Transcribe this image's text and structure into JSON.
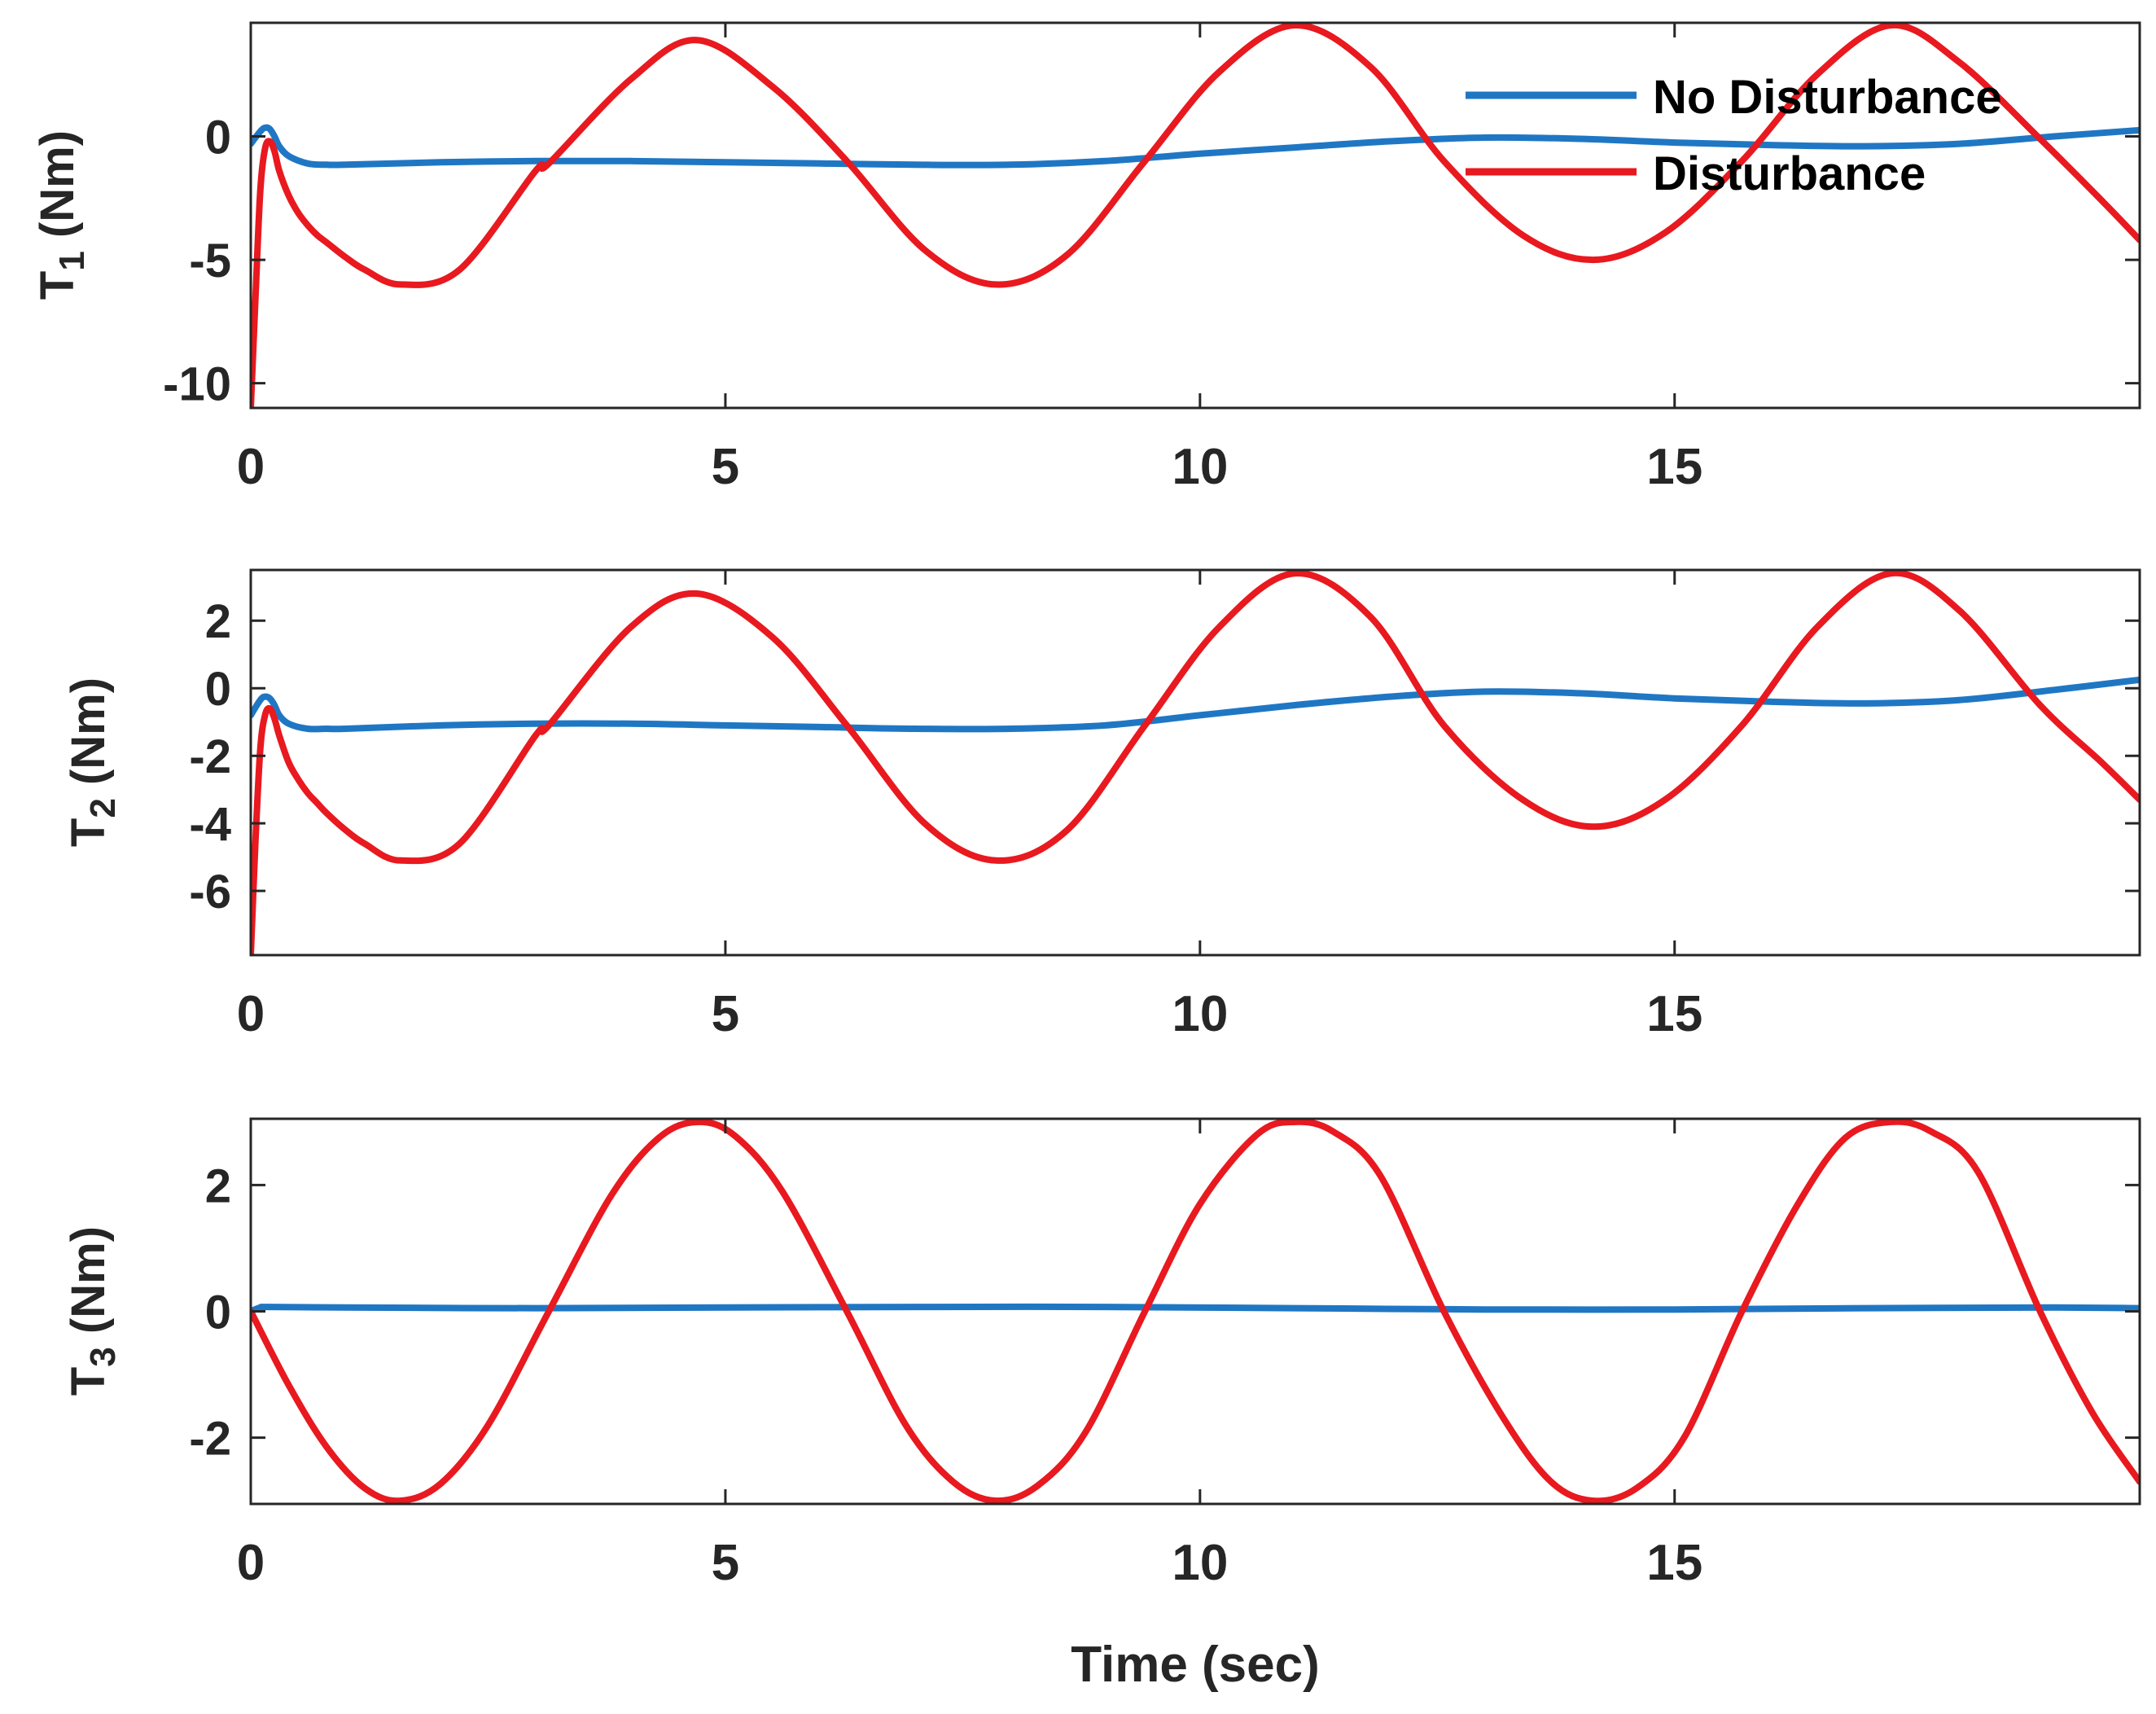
{
  "chart_data": [
    {
      "type": "line",
      "ylabel_main": "T",
      "ylabel_sub": "1",
      "ylabel_unit": " (Nm)",
      "xlim": [
        0,
        19.9
      ],
      "ylim": [
        -11,
        4.6
      ],
      "xticks": [
        0,
        5,
        10,
        15
      ],
      "yticks": [
        -10,
        -5,
        0
      ],
      "xlabel": "",
      "legend": {
        "position": "top-right",
        "entries": [
          "No Disturbance",
          "Disturbance"
        ]
      },
      "series": [
        {
          "name": "No Disturbance",
          "color": "#1f77c4",
          "x": [
            0,
            0.1,
            0.15,
            0.2,
            0.25,
            0.3,
            0.4,
            0.6,
            0.8,
            1,
            2,
            3,
            4,
            5,
            6,
            7,
            8,
            9,
            10,
            11,
            12,
            13,
            14,
            15,
            16,
            17,
            18,
            19,
            19.9
          ],
          "y": [
            -0.3,
            0.2,
            0.35,
            0.3,
            0.0,
            -0.4,
            -0.8,
            -1.1,
            -1.15,
            -1.15,
            -1.05,
            -1.0,
            -1.0,
            -1.05,
            -1.1,
            -1.15,
            -1.15,
            -1.0,
            -0.7,
            -0.45,
            -0.2,
            -0.05,
            -0.1,
            -0.25,
            -0.35,
            -0.4,
            -0.3,
            0.0,
            0.25
          ]
        },
        {
          "name": "Disturbance",
          "color": "#e8191f",
          "x": [
            0,
            0.05,
            0.1,
            0.15,
            0.2,
            0.25,
            0.3,
            0.4,
            0.5,
            0.6,
            0.7,
            0.8,
            1.0,
            1.2,
            1.58,
            2.2,
            3.0,
            3.14,
            4.0,
            4.7,
            5.5,
            6.28,
            7.1,
            7.85,
            8.6,
            9.42,
            10.2,
            11.0,
            11.8,
            12.57,
            13.4,
            14.15,
            14.9,
            15.71,
            16.5,
            17.28,
            18.0,
            18.85,
            19.5,
            19.9
          ],
          "y": [
            -11,
            -6.5,
            -2.2,
            -0.5,
            -0.2,
            -0.6,
            -1.4,
            -2.4,
            -3.1,
            -3.6,
            -4.0,
            -4.3,
            -4.9,
            -5.4,
            -6.0,
            -5.4,
            -1.4,
            -1.1,
            2.3,
            3.9,
            2.0,
            -1.0,
            -4.6,
            -6.0,
            -4.8,
            -1.0,
            2.6,
            4.5,
            2.8,
            -1.0,
            -4.0,
            -5.0,
            -3.9,
            -1.0,
            2.5,
            4.5,
            3.0,
            -0.1,
            -2.6,
            -4.2
          ]
        }
      ]
    },
    {
      "type": "line",
      "ylabel_main": "T",
      "ylabel_sub": "2",
      "ylabel_unit": " (Nm)",
      "xlim": [
        0,
        19.9
      ],
      "ylim": [
        -7.9,
        3.5
      ],
      "xticks": [
        0,
        5,
        10,
        15
      ],
      "yticks": [
        -6,
        -4,
        -2,
        0,
        2
      ],
      "xlabel": "",
      "series": [
        {
          "name": "No Disturbance",
          "color": "#1f77c4",
          "x": [
            0,
            0.1,
            0.15,
            0.2,
            0.25,
            0.3,
            0.4,
            0.6,
            0.8,
            1,
            2,
            3,
            4,
            5,
            6,
            7,
            8,
            9,
            10,
            11,
            12,
            13,
            14,
            15,
            16,
            17,
            18,
            19,
            19.9
          ],
          "y": [
            -0.8,
            -0.35,
            -0.25,
            -0.3,
            -0.5,
            -0.8,
            -1.05,
            -1.2,
            -1.2,
            -1.2,
            -1.1,
            -1.05,
            -1.05,
            -1.1,
            -1.15,
            -1.2,
            -1.2,
            -1.1,
            -0.8,
            -0.5,
            -0.25,
            -0.1,
            -0.15,
            -0.3,
            -0.4,
            -0.45,
            -0.35,
            -0.05,
            0.25
          ]
        },
        {
          "name": "Disturbance",
          "color": "#e8191f",
          "x": [
            0,
            0.05,
            0.1,
            0.15,
            0.2,
            0.25,
            0.3,
            0.4,
            0.5,
            0.6,
            0.7,
            0.8,
            1.0,
            1.2,
            1.58,
            2.2,
            3.0,
            3.14,
            4.0,
            4.7,
            5.5,
            6.28,
            7.1,
            7.85,
            8.6,
            9.42,
            10.2,
            11.0,
            11.8,
            12.57,
            13.4,
            14.15,
            14.9,
            15.71,
            16.5,
            17.28,
            18.0,
            18.85,
            19.5,
            19.9
          ],
          "y": [
            -7.9,
            -4.5,
            -1.8,
            -0.8,
            -0.6,
            -0.9,
            -1.4,
            -2.2,
            -2.7,
            -3.1,
            -3.4,
            -3.7,
            -4.2,
            -4.6,
            -5.1,
            -4.6,
            -1.4,
            -1.1,
            1.8,
            2.8,
            1.5,
            -1.1,
            -4.0,
            -5.1,
            -4.2,
            -1.1,
            1.8,
            3.4,
            2.1,
            -1.1,
            -3.3,
            -4.1,
            -3.3,
            -1.1,
            1.8,
            3.4,
            2.3,
            -0.5,
            -2.2,
            -3.3
          ]
        }
      ]
    },
    {
      "type": "line",
      "ylabel_main": "T",
      "ylabel_sub": "3",
      "ylabel_unit": " (Nm)",
      "xlim": [
        0,
        19.9
      ],
      "ylim": [
        -3.05,
        3.05
      ],
      "xticks": [
        0,
        5,
        10,
        15
      ],
      "yticks": [
        -2,
        0,
        2
      ],
      "xlabel": "Time (sec)",
      "series": [
        {
          "name": "No Disturbance",
          "color": "#1f77c4",
          "x": [
            0,
            0.1,
            0.2,
            1,
            3,
            5,
            7,
            9,
            11,
            13,
            15,
            17,
            19,
            19.9
          ],
          "y": [
            0.0,
            0.06,
            0.07,
            0.06,
            0.05,
            0.06,
            0.07,
            0.07,
            0.05,
            0.03,
            0.03,
            0.05,
            0.06,
            0.05
          ]
        },
        {
          "name": "Disturbance",
          "color": "#e8191f",
          "x": [
            0,
            0.4,
            0.8,
            1.2,
            1.57,
            2.0,
            2.5,
            3.14,
            3.8,
            4.3,
            4.71,
            5.1,
            5.6,
            6.28,
            6.9,
            7.4,
            7.85,
            8.3,
            8.8,
            9.42,
            10.0,
            10.6,
            11.0,
            11.4,
            11.9,
            12.57,
            13.2,
            13.7,
            14.14,
            14.6,
            15.1,
            15.71,
            16.3,
            16.8,
            17.28,
            17.7,
            18.2,
            18.85,
            19.4,
            19.9
          ],
          "y": [
            0.0,
            -1.17,
            -2.15,
            -2.8,
            -3.0,
            -2.73,
            -1.8,
            0.0,
            1.84,
            2.75,
            3.0,
            2.78,
            1.9,
            0.0,
            -1.8,
            -2.7,
            -3.0,
            -2.75,
            -1.9,
            0.0,
            1.7,
            2.8,
            3.0,
            2.85,
            2.15,
            0.0,
            -1.7,
            -2.7,
            -3.0,
            -2.8,
            -2.0,
            0.0,
            1.7,
            2.75,
            3.0,
            2.85,
            2.2,
            0.0,
            -1.6,
            -2.7
          ]
        }
      ]
    }
  ]
}
